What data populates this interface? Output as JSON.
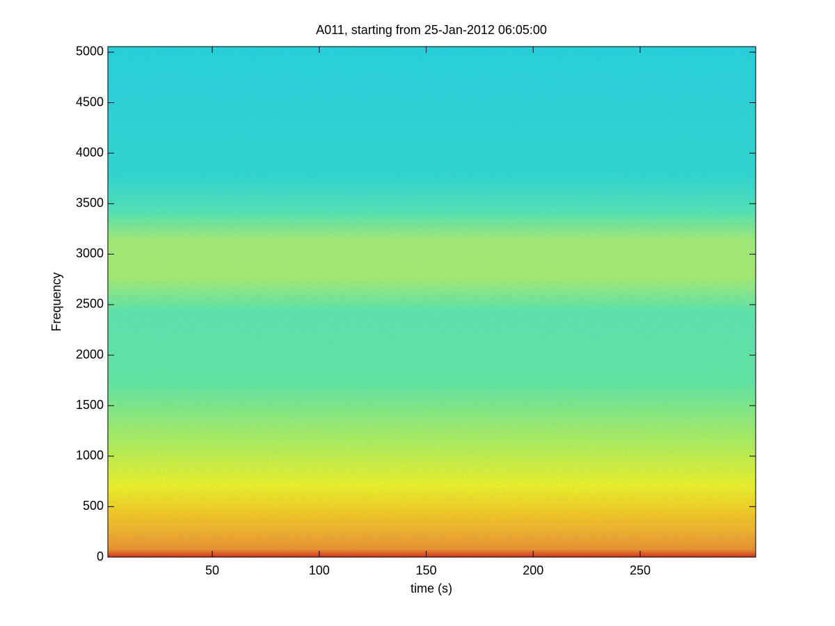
{
  "chart_data": {
    "type": "spectrogram",
    "title": "A011, starting from 25-Jan-2012 06:05:00",
    "x_label": "time (s)",
    "y_label": "Frequency",
    "xlim": [
      1.2,
      304
    ],
    "xticks": [
      50,
      100,
      150,
      200,
      250
    ],
    "ylim": [
      0,
      5055
    ],
    "yticks": [
      0,
      500,
      1000,
      1500,
      2000,
      2500,
      3000,
      3500,
      4000,
      4500,
      5000
    ],
    "colormap": "jet",
    "grid": false
  }
}
